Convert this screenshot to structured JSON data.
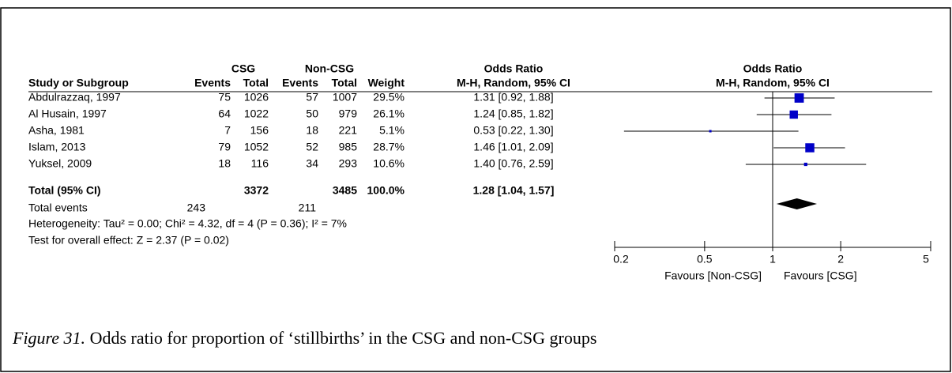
{
  "table": {
    "group_headers": [
      "CSG",
      "Non-CSG",
      "Odds Ratio",
      "Odds Ratio"
    ],
    "headers": [
      "Study or Subgroup",
      "Events",
      "Total",
      "Events",
      "Total",
      "Weight",
      "M-H, Random, 95% CI",
      "M-H, Random, 95% CI"
    ],
    "rows": [
      [
        "Abdulrazzaq, 1997",
        "75",
        "1026",
        "57",
        "1007",
        "29.5%",
        "1.31 [0.92, 1.88]"
      ],
      [
        "Al Husain, 1997",
        "64",
        "1022",
        "50",
        "979",
        "26.1%",
        "1.24 [0.85, 1.82]"
      ],
      [
        "Asha, 1981",
        "7",
        "156",
        "18",
        "221",
        "5.1%",
        "0.53 [0.22, 1.30]"
      ],
      [
        "Islam, 2013",
        "79",
        "1052",
        "52",
        "985",
        "28.7%",
        "1.46 [1.01, 2.09]"
      ],
      [
        "Yuksel, 2009",
        "18",
        "116",
        "34",
        "293",
        "10.6%",
        "1.40 [0.76, 2.59]"
      ]
    ],
    "total": [
      "Total (95% CI)",
      "3372",
      "3485",
      "100.0%",
      "1.28 [1.04, 1.57]"
    ],
    "total_events": [
      "Total events",
      "243",
      "211"
    ],
    "heterogeneity": "Heterogeneity: Tau² = 0.00; Chi² = 4.32, df = 4 (P = 0.36); I² = 7%",
    "overall_effect": "Test for overall effect: Z = 2.37 (P = 0.02)"
  },
  "chart_data": {
    "type": "forest",
    "xlog": true,
    "xlim": [
      0.2,
      5
    ],
    "xticks": [
      0.2,
      0.5,
      1,
      2,
      5
    ],
    "reference": 1,
    "color": "#0000c8",
    "total_color": "#000000",
    "xlabel_left": "Favours [Non-CSG]",
    "xlabel_right": "Favours [CSG]",
    "studies": {
      "or": [
        1.31,
        1.24,
        0.53,
        1.46,
        1.4
      ],
      "lower": [
        0.92,
        0.85,
        0.22,
        1.01,
        0.76
      ],
      "upper": [
        1.88,
        1.82,
        1.3,
        2.09,
        2.59
      ],
      "weight": [
        29.5,
        26.1,
        5.1,
        28.7,
        10.6
      ]
    },
    "total": {
      "or": 1.28,
      "lower": 1.04,
      "upper": 1.57
    }
  },
  "caption": {
    "label": "Figure 31.",
    "text": " Odds ratio for proportion of ‘stillbirths’ in the CSG and non-CSG groups"
  }
}
